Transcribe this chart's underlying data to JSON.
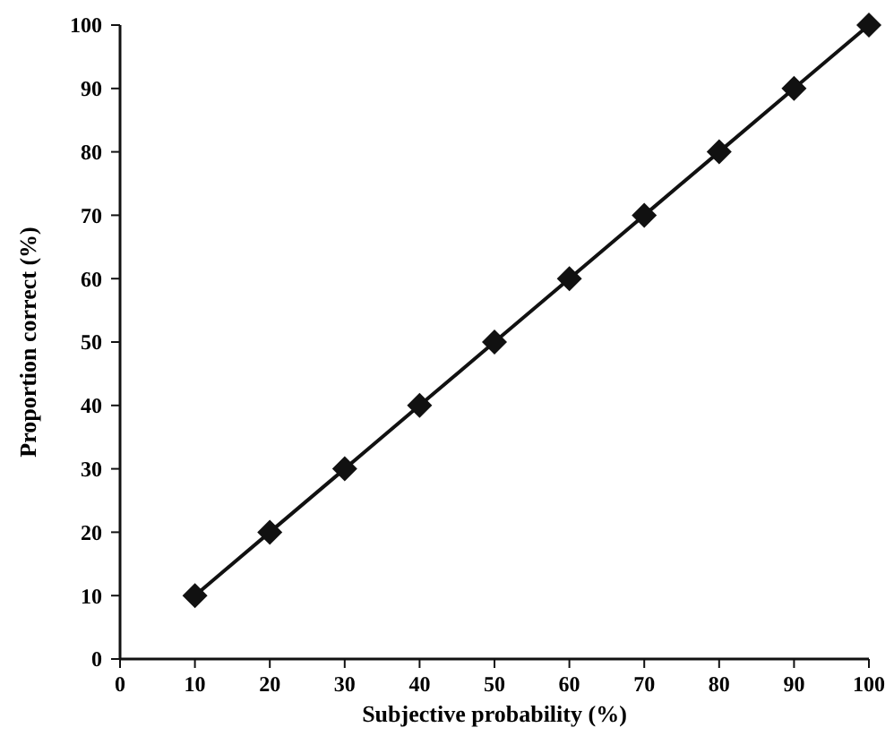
{
  "chart_data": {
    "type": "line",
    "xlabel": "Subjective probability (%)",
    "ylabel": "Proportion correct (%)",
    "x": [
      10,
      20,
      30,
      40,
      50,
      60,
      70,
      80,
      90,
      100
    ],
    "series": [
      {
        "color": "#111111",
        "values": [
          10,
          20,
          30,
          40,
          50,
          60,
          70,
          80,
          90,
          100
        ]
      }
    ],
    "xlim": [
      0,
      100
    ],
    "ylim": [
      0,
      100
    ],
    "xticks": [
      0,
      10,
      20,
      30,
      40,
      50,
      60,
      70,
      80,
      90,
      100
    ],
    "yticks": [
      0,
      10,
      20,
      30,
      40,
      50,
      60,
      70,
      80,
      90,
      100
    ],
    "marker": "diamond",
    "line_style": "solid"
  }
}
